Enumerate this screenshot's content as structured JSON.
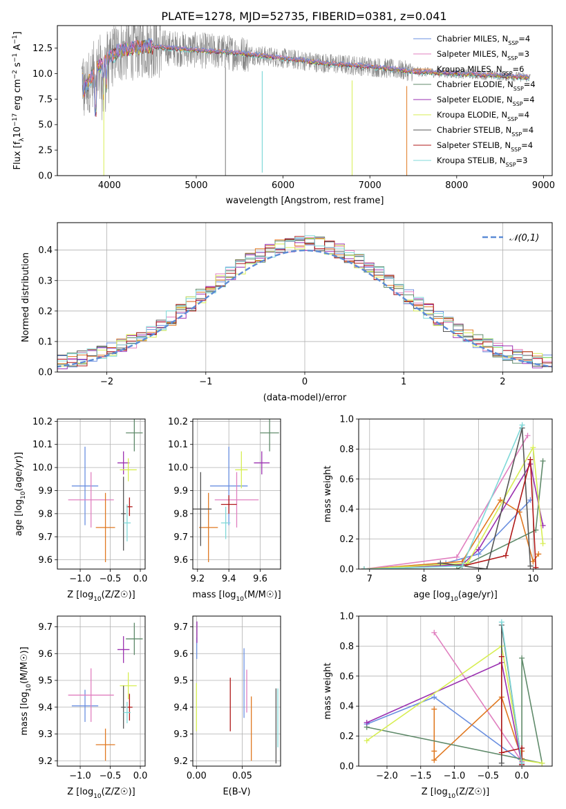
{
  "figure_title": "PLATE=1278, MJD=52735, FIBERID=0381, z=0.041",
  "colors": {
    "chab_miles": "#6a8fe0",
    "salp_miles": "#e07fbf",
    "krou_miles": "#e07820",
    "chab_elodie": "#5f8a6a",
    "salp_elodie": "#9a2fb0",
    "krou_elodie": "#d7ee52",
    "chab_stelib": "#555555",
    "salp_stelib": "#b01818",
    "krou_stelib": "#7fd8d8",
    "norm_curve": "#5b8bd6",
    "grid": "#b0b0b0"
  },
  "chart_data": [
    {
      "id": "spectrum",
      "type": "line",
      "xlabel": "wavelength [Angstrom, rest frame]",
      "ylabel": "Flux [f",
      "xlim": [
        3400,
        9100
      ],
      "ylim": [
        0,
        14.7
      ],
      "xticks": [
        4000,
        5000,
        6000,
        7000,
        8000,
        9000
      ],
      "yticks": [
        0.0,
        2.5,
        5.0,
        7.5,
        10.0,
        12.5
      ],
      "legend_position": "top-right",
      "legend": [
        {
          "key": "chab_miles",
          "label": "Chabrier MILES, N",
          "n": "4"
        },
        {
          "key": "salp_miles",
          "label": "Salpeter MILES, N",
          "n": "3"
        },
        {
          "key": "krou_miles",
          "label": "Kroupa MILES, N",
          "n": "6"
        },
        {
          "key": "chab_elodie",
          "label": "Chabrier ELODIE, N",
          "n": "4"
        },
        {
          "key": "salp_elodie",
          "label": "Salpeter ELODIE, N",
          "n": "4"
        },
        {
          "key": "krou_elodie",
          "label": "Kroupa ELODIE, N",
          "n": "4"
        },
        {
          "key": "chab_stelib",
          "label": "Chabrier STELIB, N",
          "n": "4"
        },
        {
          "key": "salp_stelib",
          "label": "Salpeter STELIB, N",
          "n": "4"
        },
        {
          "key": "krou_stelib",
          "label": "Kroupa STELIB, N",
          "n": "3"
        }
      ],
      "continuum": [
        [
          3700,
          8.2
        ],
        [
          3850,
          10.5
        ],
        [
          4100,
          12.2
        ],
        [
          4400,
          12.7
        ],
        [
          5000,
          12.3
        ],
        [
          5500,
          12.0
        ],
        [
          6000,
          11.5
        ],
        [
          6500,
          11.0
        ],
        [
          7000,
          10.7
        ],
        [
          7500,
          10.2
        ],
        [
          8000,
          10.0
        ],
        [
          8500,
          9.8
        ],
        [
          8850,
          9.6
        ]
      ],
      "absorption": [
        {
          "x": 3935,
          "depth": 0,
          "color": "krou_elodie",
          "w": 1.0
        },
        {
          "x": 5336,
          "depth": 0,
          "color": "chab_stelib",
          "w": 0.8
        },
        {
          "x": 5760,
          "depth": 0.3,
          "color": "krou_stelib",
          "w": 1.2
        },
        {
          "x": 6795,
          "depth": 0,
          "color": "krou_elodie",
          "w": 1.0
        },
        {
          "x": 7425,
          "depth": 0,
          "color": "krou_miles",
          "w": 1.0
        }
      ]
    },
    {
      "id": "residual_hist",
      "type": "histogram",
      "xlabel": "(data-model)/error",
      "ylabel": "Normed distribution",
      "xlim": [
        -2.5,
        2.5
      ],
      "ylim": [
        0,
        0.49
      ],
      "xticks": [
        -2,
        -1,
        0,
        1,
        2
      ],
      "xticklabels": [
        "−2",
        "−1",
        "0",
        "1",
        "2"
      ],
      "yticks": [
        0.0,
        0.1,
        0.2,
        0.3,
        0.4
      ],
      "legend_position": "top-right",
      "curve_label": "𝒩(0,1)",
      "bin_width": 0.1
    },
    {
      "id": "age_vs_Z",
      "type": "scatter",
      "xlabel": "Z [log",
      "ylabel": "age  [log",
      "xlim": [
        -1.38,
        0.08
      ],
      "ylim": [
        9.56,
        10.21
      ],
      "xticks": [
        -1.0,
        -0.5,
        0.0
      ],
      "xticklabels": [
        "−1.0",
        "−0.5",
        "0.0"
      ],
      "yticks": [
        9.6,
        9.7,
        9.8,
        9.9,
        10.0,
        10.1,
        10.2
      ],
      "points": [
        {
          "c": "chab_miles",
          "x": -0.92,
          "xe": 0.22,
          "y": 9.92,
          "ye": 0.17
        },
        {
          "c": "salp_miles",
          "x": -0.82,
          "xe": 0.38,
          "y": 9.86,
          "ye": 0.12
        },
        {
          "c": "krou_miles",
          "x": -0.58,
          "xe": 0.16,
          "y": 9.74,
          "ye": 0.15
        },
        {
          "c": "chab_elodie",
          "x": -0.1,
          "xe": 0.14,
          "y": 10.15,
          "ye": 0.08
        },
        {
          "c": "salp_elodie",
          "x": -0.28,
          "xe": 0.1,
          "y": 10.02,
          "ye": 0.05
        },
        {
          "c": "krou_elodie",
          "x": -0.2,
          "xe": 0.14,
          "y": 9.99,
          "ye": 0.05
        },
        {
          "c": "chab_stelib",
          "x": -0.28,
          "xe": 0.04,
          "y": 9.8,
          "ye": 0.16
        },
        {
          "c": "salp_stelib",
          "x": -0.18,
          "xe": 0.05,
          "y": 9.83,
          "ye": 0.04
        },
        {
          "c": "krou_stelib",
          "x": -0.22,
          "xe": 0.06,
          "y": 9.76,
          "ye": 0.08
        }
      ]
    },
    {
      "id": "age_vs_mass",
      "type": "scatter",
      "xlabel": "mass [log",
      "ylabel": "",
      "xlim": [
        9.17,
        9.73
      ],
      "ylim": [
        9.56,
        10.21
      ],
      "xticks": [
        9.2,
        9.4,
        9.6
      ],
      "xticklabels": [
        "9.2",
        "9.4",
        "9.6"
      ],
      "yticks": [
        9.6,
        9.7,
        9.8,
        9.9,
        10.0,
        10.1,
        10.2
      ],
      "points": [
        {
          "c": "chab_miles",
          "x": 9.4,
          "xe": 0.12,
          "y": 9.92,
          "ye": 0.17
        },
        {
          "c": "salp_miles",
          "x": 9.45,
          "xe": 0.14,
          "y": 9.86,
          "ye": 0.12
        },
        {
          "c": "krou_miles",
          "x": 9.27,
          "xe": 0.06,
          "y": 9.74,
          "ye": 0.15
        },
        {
          "c": "chab_elodie",
          "x": 9.66,
          "xe": 0.06,
          "y": 10.15,
          "ye": 0.08
        },
        {
          "c": "salp_elodie",
          "x": 9.61,
          "xe": 0.05,
          "y": 10.02,
          "ye": 0.05
        },
        {
          "c": "krou_elodie",
          "x": 9.48,
          "xe": 0.04,
          "y": 9.99,
          "ye": 0.08
        },
        {
          "c": "chab_stelib",
          "x": 9.22,
          "xe": 0.07,
          "y": 9.82,
          "ye": 0.16
        },
        {
          "c": "salp_stelib",
          "x": 9.4,
          "xe": 0.05,
          "y": 9.84,
          "ye": 0.04
        },
        {
          "c": "krou_stelib",
          "x": 9.38,
          "xe": 0.03,
          "y": 9.76,
          "ye": 0.07
        }
      ]
    },
    {
      "id": "mass_vs_Z",
      "type": "scatter",
      "xlabel": "Z [log",
      "ylabel": "mass [log",
      "xlim": [
        -1.38,
        0.08
      ],
      "ylim": [
        9.18,
        9.74
      ],
      "xticks": [
        -1.0,
        -0.5,
        0.0
      ],
      "xticklabels": [
        "−1.0",
        "−0.5",
        "0.0"
      ],
      "yticks": [
        9.2,
        9.3,
        9.4,
        9.5,
        9.6,
        9.7
      ],
      "points": [
        {
          "c": "chab_miles",
          "x": -0.92,
          "xe": 0.22,
          "y": 9.405,
          "ye": 0.06
        },
        {
          "c": "salp_miles",
          "x": -0.82,
          "xe": 0.38,
          "y": 9.445,
          "ye": 0.1
        },
        {
          "c": "krou_miles",
          "x": -0.58,
          "xe": 0.16,
          "y": 9.26,
          "ye": 0.06
        },
        {
          "c": "chab_elodie",
          "x": -0.1,
          "xe": 0.14,
          "y": 9.655,
          "ye": 0.06
        },
        {
          "c": "salp_elodie",
          "x": -0.28,
          "xe": 0.1,
          "y": 9.615,
          "ye": 0.05
        },
        {
          "c": "krou_elodie",
          "x": -0.2,
          "xe": 0.14,
          "y": 9.48,
          "ye": 0.05
        },
        {
          "c": "chab_stelib",
          "x": -0.28,
          "xe": 0.04,
          "y": 9.4,
          "ye": 0.08
        },
        {
          "c": "salp_stelib",
          "x": -0.18,
          "xe": 0.05,
          "y": 9.4,
          "ye": 0.05
        },
        {
          "c": "krou_stelib",
          "x": -0.22,
          "xe": 0.06,
          "y": 9.38,
          "ye": 0.04
        }
      ]
    },
    {
      "id": "mass_vs_ebv",
      "type": "scatter",
      "xlabel": "E(B-V)",
      "ylabel": "",
      "xlim": [
        -0.004,
        0.092
      ],
      "ylim": [
        9.18,
        9.74
      ],
      "xticks": [
        0.0,
        0.05
      ],
      "xticklabels": [
        "0.00",
        "0.05"
      ],
      "yticks": [
        9.2,
        9.3,
        9.4,
        9.5,
        9.6,
        9.7
      ],
      "points": [
        {
          "c": "chab_miles",
          "x": 0.0003,
          "xe": 0,
          "y": 9.62,
          "ye": 0.04
        },
        {
          "c": "salp_elodie",
          "x": 0.0005,
          "xe": 0,
          "y": 9.68,
          "ye": 0.04
        },
        {
          "c": "krou_elodie",
          "x": 0.0,
          "xe": 0,
          "y": 9.4,
          "ye": 0.09
        },
        {
          "c": "salp_stelib",
          "x": 0.037,
          "xe": 0,
          "y": 9.41,
          "ye": 0.1
        },
        {
          "c": "salp_miles",
          "x": 0.055,
          "xe": 0,
          "y": 9.46,
          "ye": 0.08
        },
        {
          "c": "chab_miles",
          "x": 0.052,
          "xe": 0,
          "y": 9.49,
          "ye": 0.13
        },
        {
          "c": "krou_miles",
          "x": 0.06,
          "xe": 0,
          "y": 9.32,
          "ye": 0.12
        },
        {
          "c": "chab_stelib",
          "x": 0.087,
          "xe": 0,
          "y": 9.33,
          "ye": 0.14
        },
        {
          "c": "krou_stelib",
          "x": 0.089,
          "xe": 0,
          "y": 9.36,
          "ye": 0.11
        }
      ]
    },
    {
      "id": "weight_vs_age",
      "type": "line",
      "xlabel": "age  [log",
      "ylabel": "mass weight",
      "xlim": [
        6.8,
        10.35
      ],
      "ylim": [
        0,
        1.0
      ],
      "xticks": [
        7,
        8,
        9,
        10
      ],
      "xticklabels": [
        "7",
        "8",
        "9",
        "10"
      ],
      "yticks": [
        0.0,
        0.2,
        0.4,
        0.6,
        0.8,
        1.0
      ],
      "series": [
        {
          "c": "chab_miles",
          "pts": [
            [
              6.9,
              0.0
            ],
            [
              8.4,
              0.04
            ],
            [
              9.0,
              0.1
            ],
            [
              9.95,
              0.46
            ]
          ]
        },
        {
          "c": "salp_miles",
          "pts": [
            [
              6.9,
              0.0
            ],
            [
              8.6,
              0.08
            ],
            [
              9.9,
              0.89
            ]
          ]
        },
        {
          "c": "krou_miles",
          "pts": [
            [
              6.9,
              0.0
            ],
            [
              8.7,
              0.05
            ],
            [
              9.4,
              0.46
            ],
            [
              9.75,
              0.38
            ],
            [
              10.0,
              0.05
            ],
            [
              10.1,
              0.1
            ]
          ]
        },
        {
          "c": "chab_elodie",
          "pts": [
            [
              6.9,
              0.0
            ],
            [
              8.6,
              0.0
            ],
            [
              10.05,
              0.26
            ],
            [
              10.18,
              0.72
            ]
          ]
        },
        {
          "c": "salp_elodie",
          "pts": [
            [
              6.9,
              0.0
            ],
            [
              8.7,
              0.03
            ],
            [
              9.0,
              0.13
            ],
            [
              9.95,
              0.7
            ],
            [
              10.18,
              0.29
            ]
          ]
        },
        {
          "c": "krou_elodie",
          "pts": [
            [
              6.9,
              0.0
            ],
            [
              8.8,
              0.04
            ],
            [
              10.0,
              0.81
            ],
            [
              10.18,
              0.17
            ]
          ]
        },
        {
          "c": "chab_stelib",
          "pts": [
            [
              8.3,
              0.04
            ],
            [
              9.15,
              0.0
            ],
            [
              9.8,
              0.94
            ],
            [
              9.95,
              0.02
            ]
          ]
        },
        {
          "c": "salp_stelib",
          "pts": [
            [
              8.7,
              0.02
            ],
            [
              9.5,
              0.09
            ],
            [
              9.95,
              0.73
            ],
            [
              10.05,
              0.01
            ]
          ]
        },
        {
          "c": "krou_stelib",
          "pts": [
            [
              6.9,
              0.0
            ],
            [
              8.7,
              0.02
            ],
            [
              9.8,
              0.96
            ]
          ]
        }
      ]
    },
    {
      "id": "weight_vs_Z",
      "type": "line",
      "xlabel": "Z [log",
      "ylabel": "mass weight",
      "xlim": [
        -2.42,
        0.45
      ],
      "ylim": [
        0,
        1.0
      ],
      "xticks": [
        -2.0,
        -1.5,
        -1.0,
        -0.5,
        0.0
      ],
      "xticklabels": [
        "−2.0",
        "−1.5",
        "−1.0",
        "−0.5",
        "0.0"
      ],
      "yticks": [
        0.0,
        0.2,
        0.4,
        0.6,
        0.8,
        1.0
      ],
      "series": [
        {
          "c": "chab_miles",
          "pts": [
            [
              0.0,
              0.03
            ],
            [
              -1.3,
              0.46
            ],
            [
              -2.3,
              0.28
            ]
          ]
        },
        {
          "c": "salp_miles",
          "pts": [
            [
              -1.3,
              0.89
            ],
            [
              0.0,
              0.03
            ]
          ]
        },
        {
          "c": "krou_miles",
          "pts": [
            [
              -1.3,
              0.38
            ],
            [
              -1.3,
              0.1
            ],
            [
              -1.3,
              0.04
            ],
            [
              -0.3,
              0.46
            ],
            [
              0.0,
              0.05
            ],
            [
              0.0,
              0.1
            ]
          ]
        },
        {
          "c": "chab_elodie",
          "pts": [
            [
              -2.3,
              0.26
            ],
            [
              0.3,
              0.02
            ],
            [
              0.0,
              0.72
            ],
            [
              0.0,
              0.0
            ]
          ]
        },
        {
          "c": "salp_elodie",
          "pts": [
            [
              -2.3,
              0.29
            ],
            [
              -0.3,
              0.69
            ],
            [
              0.0,
              0.01
            ]
          ]
        },
        {
          "c": "krou_elodie",
          "pts": [
            [
              -2.3,
              0.17
            ],
            [
              -0.3,
              0.8
            ],
            [
              0.0,
              0.04
            ],
            [
              0.3,
              0.02
            ]
          ]
        },
        {
          "c": "chab_stelib",
          "pts": [
            [
              0.0,
              0.02
            ],
            [
              -0.3,
              0.94
            ],
            [
              -0.3,
              0.02
            ]
          ]
        },
        {
          "c": "salp_stelib",
          "pts": [
            [
              -0.3,
              0.73
            ],
            [
              -0.3,
              0.09
            ],
            [
              0.0,
              0.12
            ],
            [
              0.0,
              0.01
            ]
          ]
        },
        {
          "c": "krou_stelib",
          "pts": [
            [
              -0.3,
              0.96
            ],
            [
              0.0,
              0.02
            ]
          ]
        }
      ]
    }
  ]
}
